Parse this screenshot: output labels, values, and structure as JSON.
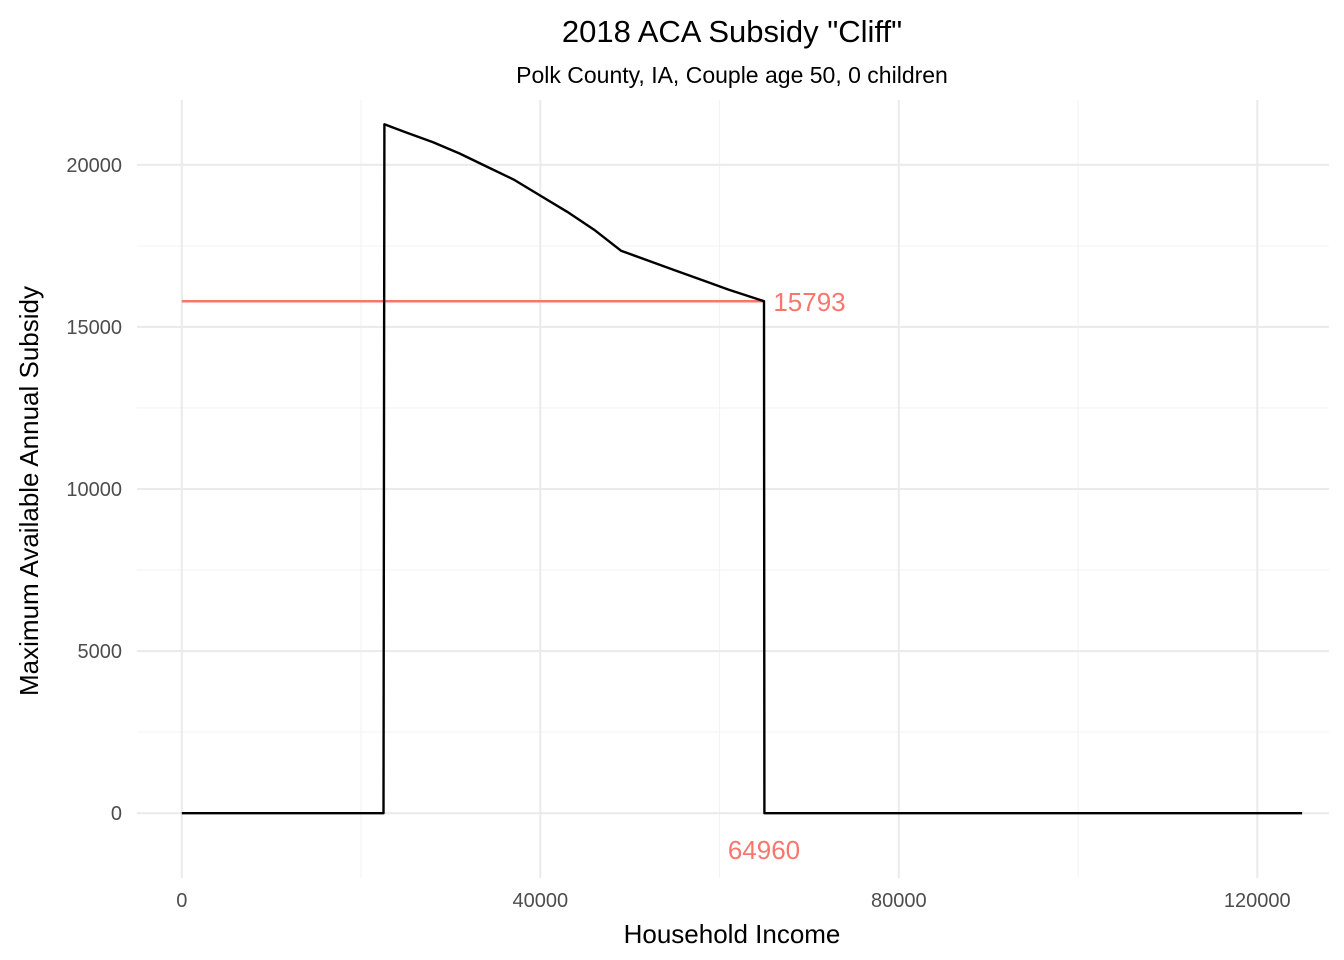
{
  "chart_data": {
    "type": "line",
    "title": "2018 ACA Subsidy \"Cliff\"",
    "subtitle": "Polk County, IA, Couple age 50, 0 children",
    "xlabel": "Household Income",
    "ylabel": "Maximum Available Annual Subsidy",
    "xlim": [
      -5000,
      128000
    ],
    "ylim": [
      -2000,
      22000
    ],
    "x_ticks": [
      0,
      40000,
      80000,
      120000
    ],
    "x_tick_labels": [
      "0",
      "40000",
      "80000",
      "120000"
    ],
    "x_minor_ticks": [
      20000,
      60000,
      100000
    ],
    "y_ticks": [
      0,
      5000,
      10000,
      15000,
      20000
    ],
    "y_tick_labels": [
      "0",
      "5000",
      "10000",
      "15000",
      "20000"
    ],
    "y_minor_ticks": [
      2500,
      7500,
      12500,
      17500
    ],
    "grid": true,
    "series": [
      {
        "color": "#000000",
        "points": [
          [
            0,
            0
          ],
          [
            22500,
            0
          ],
          [
            22600,
            21250
          ],
          [
            25000,
            21000
          ],
          [
            28000,
            20700
          ],
          [
            31000,
            20350
          ],
          [
            34000,
            19950
          ],
          [
            37000,
            19550
          ],
          [
            40000,
            19050
          ],
          [
            43000,
            18550
          ],
          [
            46000,
            18000
          ],
          [
            49000,
            17350
          ],
          [
            52000,
            17050
          ],
          [
            55000,
            16750
          ],
          [
            58000,
            16450
          ],
          [
            61000,
            16150
          ],
          [
            64960,
            15793
          ],
          [
            65000,
            0
          ],
          [
            125000,
            0
          ]
        ]
      }
    ],
    "reference_line": {
      "color": "#F8766D",
      "x_start": 0,
      "x_end": 64960,
      "y": 15793
    },
    "annotations": [
      {
        "text": "15793",
        "x": 66000,
        "y": 15793,
        "color": "#F8766D"
      },
      {
        "text": "64960",
        "x": 64960,
        "y": -1100,
        "color": "#F8766D"
      }
    ]
  }
}
